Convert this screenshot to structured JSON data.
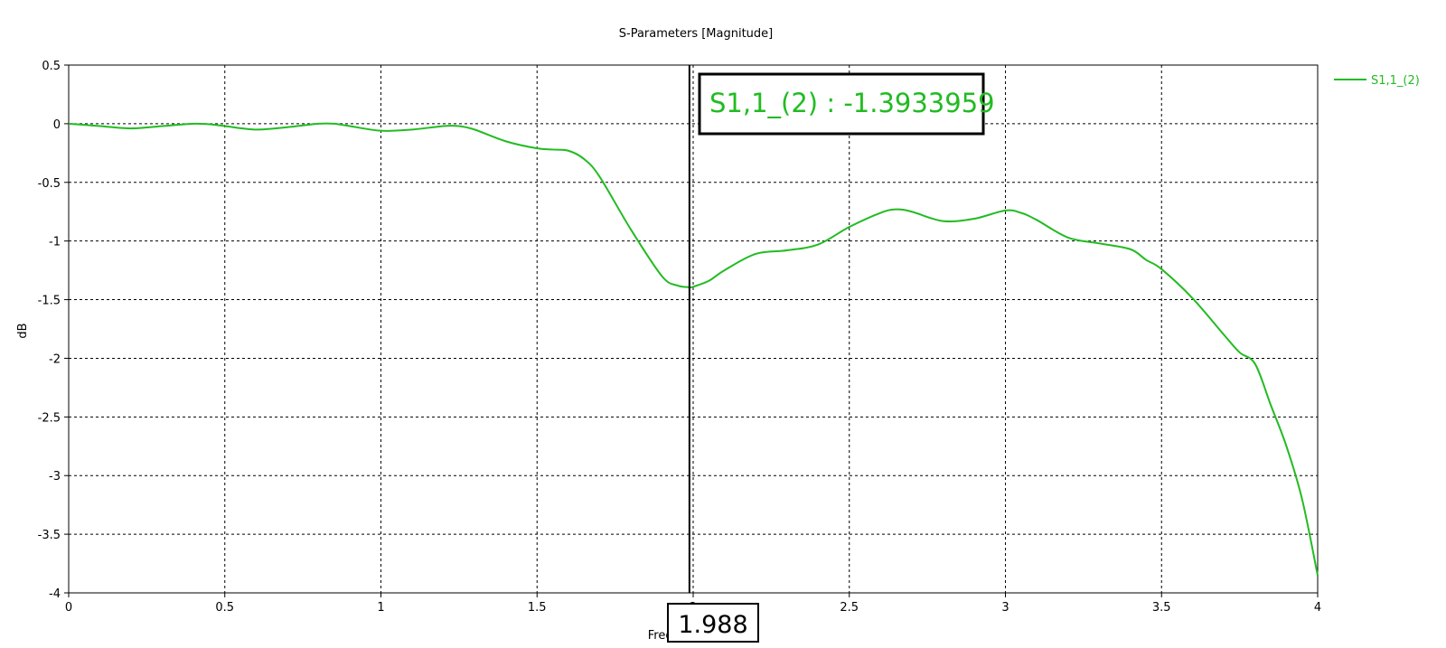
{
  "chart_data": {
    "type": "line",
    "title": "S-Parameters [Magnitude]",
    "xlabel": "Frequency / GHz",
    "ylabel": "dB",
    "xlim": [
      0,
      4
    ],
    "ylim": [
      -4,
      0.5
    ],
    "x_ticks": [
      0,
      0.5,
      1,
      1.5,
      2,
      2.5,
      3,
      3.5,
      4
    ],
    "y_ticks": [
      0.5,
      0,
      -0.5,
      -1,
      -1.5,
      -2,
      -2.5,
      -3,
      -3.5,
      -4
    ],
    "grid": true,
    "legend_position": "top-right",
    "series": [
      {
        "name": "S1,1_(2)",
        "color": "#22bb22",
        "x": [
          0,
          0.1,
          0.2,
          0.3,
          0.4,
          0.45,
          0.5,
          0.6,
          0.7,
          0.8,
          0.85,
          0.9,
          1.0,
          1.1,
          1.2,
          1.25,
          1.3,
          1.4,
          1.5,
          1.55,
          1.6,
          1.65,
          1.7,
          1.8,
          1.9,
          1.95,
          1.988,
          2.0,
          2.05,
          2.1,
          2.2,
          2.3,
          2.4,
          2.5,
          2.6,
          2.65,
          2.7,
          2.8,
          2.9,
          3.0,
          3.05,
          3.1,
          3.2,
          3.3,
          3.4,
          3.45,
          3.5,
          3.6,
          3.7,
          3.75,
          3.8,
          3.85,
          3.9,
          3.95,
          4.0
        ],
        "y": [
          0,
          -0.02,
          -0.04,
          -0.02,
          0,
          -0.005,
          -0.02,
          -0.05,
          -0.03,
          0,
          0,
          -0.02,
          -0.06,
          -0.05,
          -0.02,
          -0.02,
          -0.05,
          -0.15,
          -0.21,
          -0.22,
          -0.23,
          -0.3,
          -0.45,
          -0.9,
          -1.3,
          -1.38,
          -1.3933959,
          -1.39,
          -1.34,
          -1.25,
          -1.11,
          -1.08,
          -1.03,
          -0.88,
          -0.76,
          -0.73,
          -0.75,
          -0.83,
          -0.81,
          -0.74,
          -0.76,
          -0.82,
          -0.97,
          -1.02,
          -1.07,
          -1.16,
          -1.24,
          -1.49,
          -1.8,
          -1.95,
          -2.05,
          -2.4,
          -2.75,
          -3.2,
          -3.85
        ]
      }
    ],
    "annotations": {
      "marker_label": "S1,1_(2) : -1.3933959",
      "marker_x_label": "1.988",
      "marker_x": 1.988
    }
  }
}
